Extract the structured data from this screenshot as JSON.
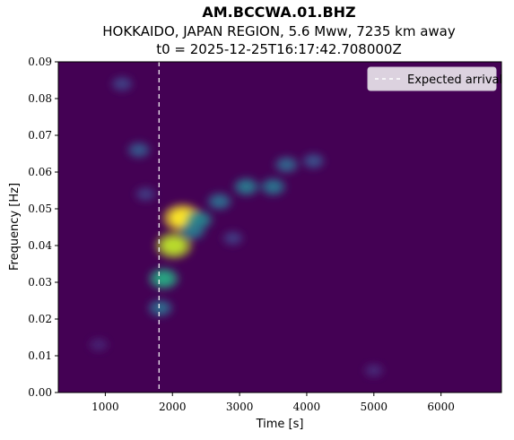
{
  "chart_data": {
    "type": "heatmap",
    "title": "AM.BCCWA.01.BHZ",
    "subtitle_lines": [
      "HOKKAIDO, JAPAN REGION, 5.6 Mww, 7235 km away",
      "t0 = 2025-12-25T16:17:42.708000Z"
    ],
    "xlabel": "Time [s]",
    "ylabel": "Frequency [Hz]",
    "xlim": [
      300,
      6900
    ],
    "ylim": [
      0,
      0.09
    ],
    "x_ticks": [
      1000,
      2000,
      3000,
      4000,
      5000,
      6000
    ],
    "x_tick_labels": [
      "1000",
      "2000",
      "3000",
      "4000",
      "5000",
      "6000"
    ],
    "y_ticks": [
      0,
      0.01,
      0.02,
      0.03,
      0.04,
      0.05,
      0.06,
      0.07,
      0.08,
      0.09
    ],
    "y_tick_labels": [
      "0.00",
      "0.01",
      "0.02",
      "0.03",
      "0.04",
      "0.05",
      "0.06",
      "0.07",
      "0.08",
      "0.09"
    ],
    "colormap": "viridis",
    "background_color": "#440154",
    "expected_arrival": {
      "x": 1800,
      "label": "Expected arrival",
      "style": "dashed",
      "color": "#ffffff"
    },
    "legend_placement": "top-right",
    "grid": false,
    "energy_blobs": [
      {
        "t": 2150,
        "f": 0.0475,
        "intensity": 1.0
      },
      {
        "t": 2020,
        "f": 0.04,
        "intensity": 0.9
      },
      {
        "t": 1870,
        "f": 0.031,
        "intensity": 0.6
      },
      {
        "t": 1820,
        "f": 0.023,
        "intensity": 0.35
      },
      {
        "t": 2400,
        "f": 0.047,
        "intensity": 0.45
      },
      {
        "t": 2300,
        "f": 0.044,
        "intensity": 0.4
      },
      {
        "t": 2700,
        "f": 0.052,
        "intensity": 0.35
      },
      {
        "t": 3100,
        "f": 0.056,
        "intensity": 0.4
      },
      {
        "t": 3500,
        "f": 0.056,
        "intensity": 0.38
      },
      {
        "t": 3700,
        "f": 0.062,
        "intensity": 0.32
      },
      {
        "t": 4100,
        "f": 0.063,
        "intensity": 0.25
      },
      {
        "t": 1500,
        "f": 0.066,
        "intensity": 0.28
      },
      {
        "t": 1250,
        "f": 0.084,
        "intensity": 0.2
      },
      {
        "t": 1600,
        "f": 0.054,
        "intensity": 0.18
      },
      {
        "t": 2900,
        "f": 0.042,
        "intensity": 0.18
      },
      {
        "t": 5000,
        "f": 0.006,
        "intensity": 0.12
      },
      {
        "t": 900,
        "f": 0.013,
        "intensity": 0.1
      }
    ]
  }
}
